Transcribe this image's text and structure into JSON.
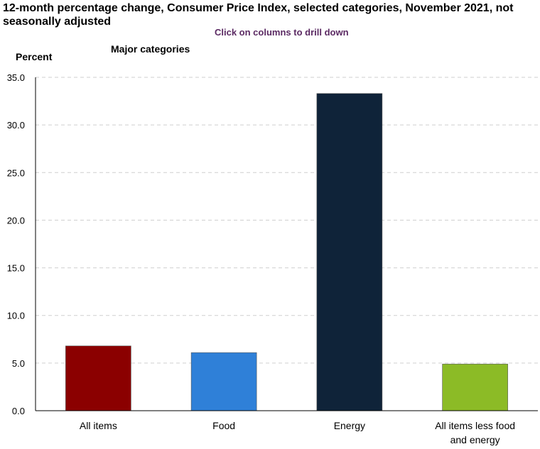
{
  "header": {
    "title": "12-month percentage change, Consumer Price Index, selected categories, November 2021, not seasonally adjusted",
    "drill_hint": "Click on columns to drill down",
    "subtitle": "Major categories"
  },
  "chart_data": {
    "type": "bar",
    "title": "12-month percentage change, Consumer Price Index, selected categories, November 2021, not seasonally adjusted",
    "subtitle": "Major categories",
    "ylabel": "Percent",
    "xlabel": "",
    "ylim": [
      0,
      35
    ],
    "yticks": [
      "0.0",
      "5.0",
      "10.0",
      "15.0",
      "20.0",
      "25.0",
      "30.0",
      "35.0"
    ],
    "grid": true,
    "categories": [
      "All items",
      "Food",
      "Energy",
      "All items less food and energy"
    ],
    "values": [
      6.8,
      6.1,
      33.3,
      4.9
    ],
    "colors": [
      "#8b0000",
      "#2f80d8",
      "#0f2339",
      "#8cbb26"
    ]
  }
}
